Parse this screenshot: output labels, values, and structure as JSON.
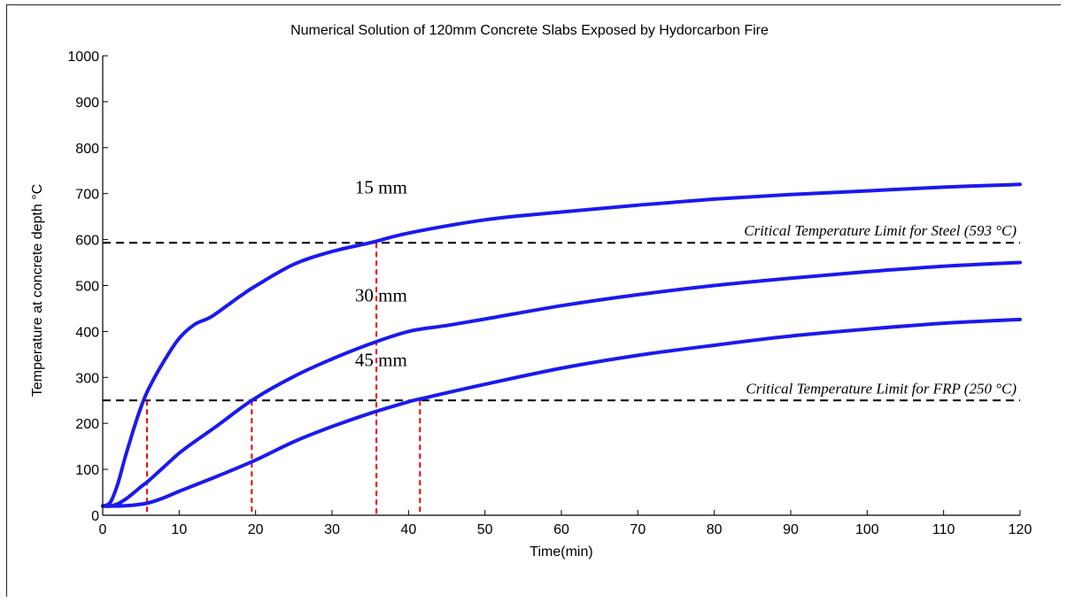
{
  "chart_data": {
    "type": "line",
    "title": "Numerical Solution of 120mm Concrete Slabs Exposed by Hydorcarbon Fire",
    "xlabel": "Time(min)",
    "ylabel": "Temperature at concrete depth °C",
    "xlim": [
      0,
      120
    ],
    "ylim": [
      0,
      1000
    ],
    "xticks": [
      0,
      10,
      20,
      30,
      40,
      50,
      60,
      70,
      80,
      90,
      100,
      110,
      120
    ],
    "yticks": [
      0,
      100,
      200,
      300,
      400,
      500,
      600,
      700,
      800,
      900,
      1000
    ],
    "xtick_labels": [
      "0",
      "10",
      "20",
      "30",
      "40",
      "50",
      "60",
      "70",
      "80",
      "90",
      "100",
      "110",
      "120"
    ],
    "ytick_labels": [
      "0",
      "100",
      "200",
      "300",
      "400",
      "500",
      "600",
      "700",
      "800",
      "900",
      "1000"
    ],
    "grid": false,
    "series": [
      {
        "name": "15 mm",
        "color": "#1a1aee",
        "x": [
          0,
          1,
          2,
          3,
          4,
          5,
          6,
          8,
          10,
          12,
          14,
          16,
          18,
          20,
          25,
          30,
          35,
          40,
          50,
          60,
          70,
          80,
          90,
          100,
          110,
          120
        ],
        "y": [
          20,
          28,
          70,
          130,
          185,
          235,
          275,
          335,
          385,
          415,
          430,
          453,
          477,
          499,
          546,
          574,
          593,
          614,
          643,
          660,
          675,
          688,
          698,
          706,
          714,
          720
        ]
      },
      {
        "name": "30 mm",
        "color": "#1a1aee",
        "x": [
          0,
          1,
          2,
          3,
          4,
          5,
          6,
          8,
          10,
          12,
          15,
          19.5,
          25,
          30,
          35,
          40,
          45,
          50,
          60,
          70,
          80,
          90,
          100,
          110,
          120
        ],
        "y": [
          20,
          20,
          25,
          35,
          48,
          62,
          75,
          105,
          135,
          160,
          195,
          250,
          302,
          340,
          373,
          400,
          413,
          427,
          456,
          480,
          500,
          516,
          530,
          542,
          550
        ]
      },
      {
        "name": "45 mm",
        "color": "#1a1aee",
        "x": [
          0,
          2,
          4,
          6,
          8,
          10,
          15,
          20,
          25,
          30,
          35,
          40,
          42,
          50,
          60,
          70,
          80,
          90,
          100,
          110,
          120
        ],
        "y": [
          20,
          20,
          22,
          27,
          38,
          52,
          85,
          120,
          160,
          193,
          222,
          247,
          255,
          285,
          320,
          348,
          370,
          390,
          405,
          418,
          426
        ]
      }
    ],
    "curve_labels": [
      {
        "text": "15 mm",
        "x": 33,
        "y": 700
      },
      {
        "text": "30 mm",
        "x": 33,
        "y": 465
      },
      {
        "text": "45 mm",
        "x": 33,
        "y": 325
      }
    ],
    "reference_lines": [
      {
        "y": 593,
        "label": "Critical Temperature Limit for Steel (593 °C)",
        "style": "dashed",
        "color": "#000000"
      },
      {
        "y": 250,
        "label": "Critical Temperature Limit for FRP (250 °C)",
        "style": "dashed",
        "color": "#000000"
      }
    ],
    "drop_lines": [
      {
        "x": 5.8,
        "y": 250,
        "color": "#ee0000"
      },
      {
        "x": 19.5,
        "y": 250,
        "color": "#ee0000"
      },
      {
        "x": 35.8,
        "y": 593,
        "color": "#ee0000"
      },
      {
        "x": 41.5,
        "y": 250,
        "color": "#ee0000"
      }
    ]
  }
}
